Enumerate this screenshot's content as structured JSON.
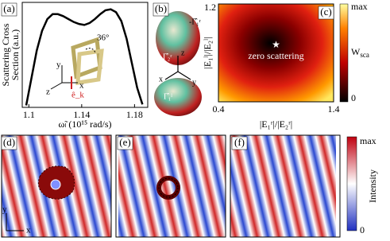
{
  "panel_labels": [
    "(a)",
    "(b)",
    "(c)",
    "(d)",
    "(e)",
    "(f)"
  ],
  "chart_data": [
    {
      "type": "line",
      "y_label": [
        "Scattering Cross",
        "Section (a.u.)"
      ],
      "x_label": "ω̃ₗ (10¹⁵ rad/s)",
      "x": [
        1.098,
        1.102,
        1.106,
        1.11,
        1.114,
        1.118,
        1.122,
        1.126,
        1.13,
        1.134,
        1.138,
        1.142,
        1.146,
        1.15,
        1.154,
        1.158,
        1.162,
        1.166,
        1.17,
        1.174,
        1.178,
        1.182,
        1.186
      ],
      "values": [
        0.02,
        0.3,
        0.58,
        0.78,
        0.9,
        0.95,
        0.95,
        0.93,
        0.9,
        0.87,
        0.85,
        0.84,
        0.86,
        0.9,
        0.95,
        0.99,
        1.0,
        0.97,
        0.88,
        0.7,
        0.45,
        0.2,
        0.03
      ],
      "color": "#000000",
      "xlim": [
        1.095,
        1.19
      ],
      "ylim": [
        0,
        1.07
      ],
      "xticks": [
        1.1,
        1.14,
        1.18
      ],
      "annotations": [
        "y",
        "z",
        "x",
        "36°",
        "ê_k"
      ]
    },
    {
      "type": "heatmap",
      "x_label": "|E₁ʳ|/|E₂ʳ|",
      "y_label": "|E₁ˡ|/|E₂ˡ|",
      "xlim": [
        0.4,
        1.4
      ],
      "ylim": [
        0.4,
        1.2
      ],
      "xticks": [
        0.4,
        1.4
      ],
      "yticks": [
        1.2
      ],
      "point": {
        "x": 0.9,
        "y": 0.86
      },
      "annotation": "zero scattering",
      "colorbar_labels": [
        "max",
        "0"
      ],
      "colorbar_title": {
        "main": "W",
        "sub": "sca"
      }
    }
  ],
  "panel_b_labels": [
    "-Γ̂₁ʳ",
    "Γ̂₂ʳ",
    "z",
    "x",
    "y",
    "Γ̂₁ˡ"
  ],
  "field_maps": {
    "axis_labels": [
      "y",
      "x"
    ],
    "colorbar_labels": [
      "max",
      "0"
    ],
    "colorbar_title": "Intensity"
  }
}
